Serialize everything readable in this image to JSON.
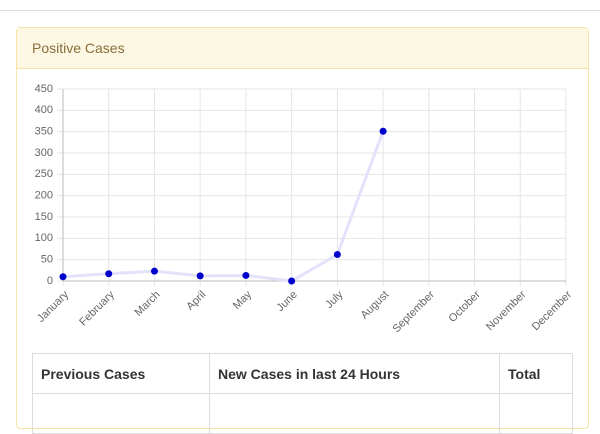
{
  "panel": {
    "title": "Positive Cases"
  },
  "chart_data": {
    "type": "line",
    "categories": [
      "January",
      "February",
      "March",
      "April",
      "May",
      "June",
      "July",
      "August",
      "September",
      "October",
      "November",
      "December"
    ],
    "values": [
      10,
      17,
      23,
      12,
      13,
      0,
      62,
      351,
      null,
      null,
      null,
      null
    ],
    "color": "#0000cc",
    "line_color": "#e2e2fb",
    "ylim": [
      0,
      450
    ],
    "yticks": [
      0,
      50,
      100,
      150,
      200,
      250,
      300,
      350,
      400,
      450
    ],
    "grid": true
  },
  "table": {
    "headers": [
      "Previous Cases",
      "New Cases in last 24 Hours",
      "Total"
    ]
  }
}
